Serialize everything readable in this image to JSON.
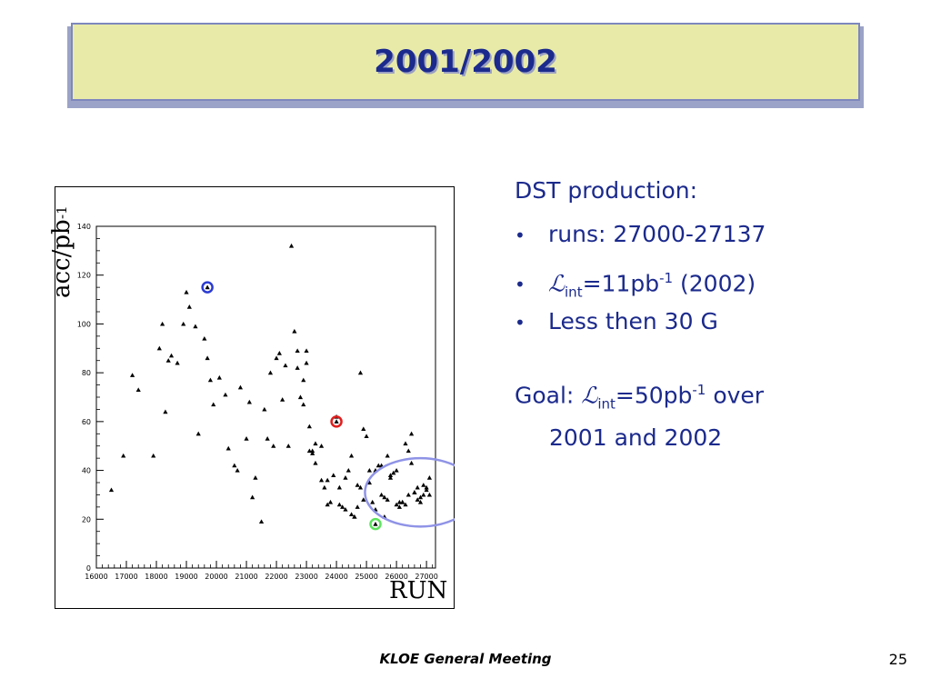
{
  "slide": {
    "title": "2001/2002",
    "footer": "KLOE General Meeting",
    "page_number": "25"
  },
  "bullets": {
    "heading": "DST production:",
    "runs": "runs: 27000-27137",
    "lumi_symbol": "ℒ",
    "lumi_sub": "int",
    "lumi_value": "=11pb",
    "lumi_exp": "-1",
    "lumi_year": "(2002)",
    "less": "Less then 30 G"
  },
  "goal": {
    "label": "Goal:",
    "lumi_symbol": "ℒ",
    "lumi_sub": "int",
    "value": "=50pb",
    "exp": "-1",
    "over": "over",
    "years": "2001 and 2002"
  },
  "chart_data": {
    "type": "scatter",
    "xlabel": "RUN",
    "ylabel": {
      "base": "acc/pb",
      "exp": "-1"
    },
    "xlim": [
      16000,
      27300
    ],
    "ylim": [
      0,
      140
    ],
    "xticks": [
      16000,
      17000,
      18000,
      19000,
      20000,
      21000,
      22000,
      23000,
      24000,
      25000,
      26000,
      27000
    ],
    "xtick_labels": [
      "16000",
      "17000",
      "18000",
      "19000",
      "20000",
      "21000",
      "22000",
      "23000",
      "24000",
      "25000",
      "26000",
      "27000"
    ],
    "yticks": [
      0,
      20,
      40,
      60,
      80,
      100,
      120,
      140
    ],
    "ytick_labels": [
      "0",
      "20",
      "40",
      "60",
      "80",
      "100",
      "120",
      "140"
    ],
    "marker_color": "#000000",
    "series": [
      {
        "x": [
          16500,
          17200,
          17400,
          17900,
          18100,
          18200,
          18400,
          18500,
          18700,
          18900,
          19000,
          19100,
          19300,
          19400,
          19600,
          19700,
          19900,
          20100,
          20300,
          20400,
          20600,
          20800,
          21000,
          21100,
          21300,
          21500,
          21600,
          21800,
          22000,
          22100,
          22300,
          22400,
          22500,
          22600,
          22700,
          22800,
          22900,
          23000,
          23100,
          23200,
          23300,
          23500,
          23600,
          23700,
          23800,
          23900,
          24000,
          24100,
          24200,
          24300,
          24400,
          24500,
          24600,
          24700,
          24800,
          24900,
          25000,
          25100,
          25200,
          25300,
          25400,
          25500,
          25600,
          25700,
          25800,
          25900,
          26000,
          26100,
          26200,
          26300,
          26400,
          26500,
          26600,
          26700,
          26800,
          26900,
          27000,
          27100,
          16900,
          18300,
          19800,
          20700,
          21200,
          21900,
          22700,
          23100,
          23300,
          23700,
          24100,
          24300,
          24700,
          24900,
          25300,
          25700,
          26000,
          26300,
          26600,
          26800,
          27000,
          27100,
          26900,
          26700,
          26500,
          22200,
          23000,
          24500,
          25100,
          25800,
          26100,
          26400,
          21700,
          22900,
          23500,
          24800,
          25500,
          26200,
          23200,
          24600,
          25600
        ],
        "y": [
          32,
          79,
          73,
          46,
          90,
          100,
          85,
          87,
          84,
          100,
          113,
          107,
          99,
          55,
          94,
          86,
          67,
          78,
          71,
          49,
          42,
          74,
          53,
          68,
          37,
          19,
          65,
          80,
          86,
          88,
          83,
          50,
          132,
          97,
          82,
          70,
          77,
          89,
          48,
          47,
          51,
          36,
          33,
          26,
          27,
          38,
          62,
          26,
          25,
          37,
          40,
          22,
          21,
          25,
          80,
          57,
          54,
          35,
          27,
          24,
          42,
          30,
          29,
          28,
          37,
          39,
          26,
          25,
          27,
          26,
          30,
          43,
          31,
          28,
          29,
          30,
          32,
          30,
          46,
          64,
          77,
          40,
          29,
          50,
          89,
          58,
          43,
          36,
          33,
          24,
          34,
          28,
          40,
          46,
          40,
          51,
          31,
          27,
          33,
          37,
          34,
          33,
          55,
          69,
          84,
          46,
          40,
          38,
          27,
          48,
          53,
          67,
          50,
          33,
          42,
          27,
          48,
          21,
          21
        ]
      }
    ],
    "highlighted_points": [
      {
        "x": 19700,
        "y": 115,
        "color": "#2b3bd1"
      },
      {
        "x": 24000,
        "y": 60,
        "color": "#e01e1e"
      },
      {
        "x": 25300,
        "y": 18,
        "color": "#5de35d"
      }
    ],
    "annotation_ellipse": {
      "cx": 26800,
      "cy": 31,
      "rx": 1850,
      "ry": 14,
      "color": "#8f93e6"
    }
  }
}
